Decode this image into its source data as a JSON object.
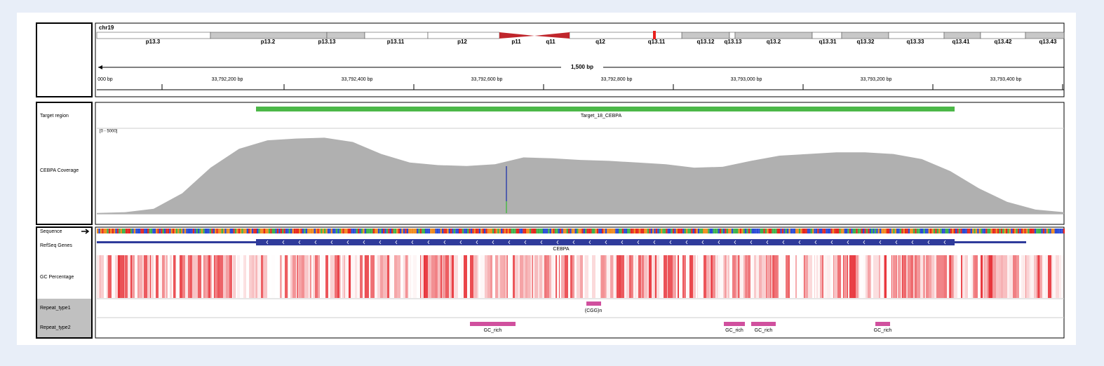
{
  "header": {
    "chromosome": "chr19",
    "span_label": "1,500 bp",
    "bands": [
      "p13.3",
      "p13.2",
      "p13.13",
      "p13.11",
      "p12",
      "p11",
      "q11",
      "q12",
      "q13.11",
      "q13.12",
      "q13.13",
      "q13.2",
      "q13.31",
      "q13.32",
      "q13.33",
      "q13.41",
      "q13.42",
      "q13.43"
    ],
    "ruler_labels": [
      "000 bp",
      "33,792,200 bp",
      "33,792,400 bp",
      "33,792,600 bp",
      "33,792,800 bp",
      "33,793,000 bp",
      "33,793,200 bp",
      "33,793,400 bp"
    ]
  },
  "tracks": {
    "target_region": "Target region",
    "coverage": "CEBPA Coverage",
    "sequence": "Sequence",
    "refseq": "RefSeq Genes",
    "gc": "GC Percentage",
    "repeat1": "Repeat_type1",
    "repeat2": "Repeat_type2"
  },
  "target": {
    "name": "Target_18_CEBPA"
  },
  "coverage": {
    "range_label": "[0 - 5000]",
    "max": 5000,
    "values": [
      50,
      100,
      300,
      1200,
      2700,
      3800,
      4300,
      4400,
      4450,
      4200,
      3500,
      3000,
      2850,
      2800,
      2900,
      3300,
      3250,
      3150,
      3100,
      3000,
      2900,
      2700,
      2750,
      3100,
      3400,
      3500,
      3600,
      3600,
      3500,
      3200,
      2500,
      1500,
      700,
      250,
      100
    ]
  },
  "gene": {
    "name": "CEBPA"
  },
  "repeats": {
    "type1": [
      "(CGG)n"
    ],
    "type2": [
      "GC_rich",
      "GC_rich",
      "GC_rich",
      "GC_rich"
    ]
  }
}
